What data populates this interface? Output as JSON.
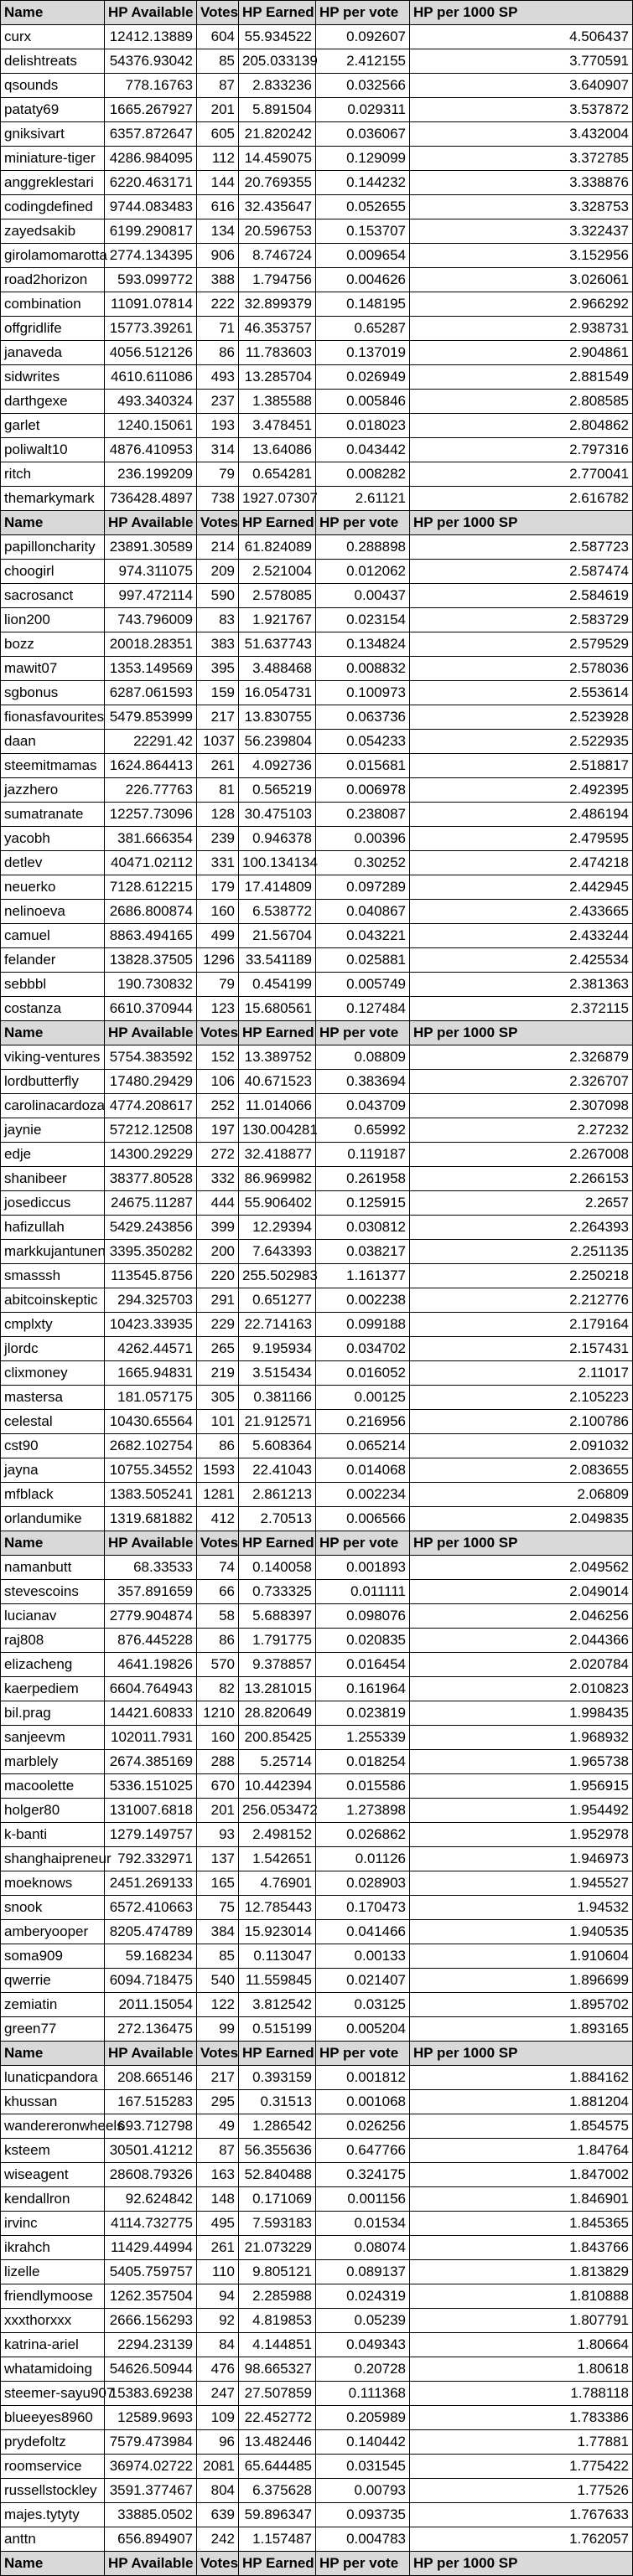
{
  "headers": [
    "Name",
    "HP Available",
    "Votes",
    "HP Earned",
    "HP per vote",
    "HP per 1000 SP"
  ],
  "sections": [
    {
      "rows": [
        [
          "curx",
          "12412.13889",
          "604",
          "55.934522",
          "0.092607",
          "4.506437"
        ],
        [
          "delishtreats",
          "54376.93042",
          "85",
          "205.033139",
          "2.412155",
          "3.770591"
        ],
        [
          "qsounds",
          "778.16763",
          "87",
          "2.833236",
          "0.032566",
          "3.640907"
        ],
        [
          "pataty69",
          "1665.267927",
          "201",
          "5.891504",
          "0.029311",
          "3.537872"
        ],
        [
          "gniksivart",
          "6357.872647",
          "605",
          "21.820242",
          "0.036067",
          "3.432004"
        ],
        [
          "miniature-tiger",
          "4286.984095",
          "112",
          "14.459075",
          "0.129099",
          "3.372785"
        ],
        [
          "anggreklestari",
          "6220.463171",
          "144",
          "20.769355",
          "0.144232",
          "3.338876"
        ],
        [
          "codingdefined",
          "9744.083483",
          "616",
          "32.435647",
          "0.052655",
          "3.328753"
        ],
        [
          "zayedsakib",
          "6199.290817",
          "134",
          "20.596753",
          "0.153707",
          "3.322437"
        ],
        [
          "girolamomarotta",
          "2774.134395",
          "906",
          "8.746724",
          "0.009654",
          "3.152956"
        ],
        [
          "road2horizon",
          "593.099772",
          "388",
          "1.794756",
          "0.004626",
          "3.026061"
        ],
        [
          "combination",
          "11091.07814",
          "222",
          "32.899379",
          "0.148195",
          "2.966292"
        ],
        [
          "offgridlife",
          "15773.39261",
          "71",
          "46.353757",
          "0.65287",
          "2.938731"
        ],
        [
          "janaveda",
          "4056.512126",
          "86",
          "11.783603",
          "0.137019",
          "2.904861"
        ],
        [
          "sidwrites",
          "4610.611086",
          "493",
          "13.285704",
          "0.026949",
          "2.881549"
        ],
        [
          "darthgexe",
          "493.340324",
          "237",
          "1.385588",
          "0.005846",
          "2.808585"
        ],
        [
          "garlet",
          "1240.15061",
          "193",
          "3.478451",
          "0.018023",
          "2.804862"
        ],
        [
          "poliwalt10",
          "4876.410953",
          "314",
          "13.64086",
          "0.043442",
          "2.797316"
        ],
        [
          "ritch",
          "236.199209",
          "79",
          "0.654281",
          "0.008282",
          "2.770041"
        ],
        [
          "themarkymark",
          "736428.4897",
          "738",
          "1927.07307",
          "2.61121",
          "2.616782"
        ]
      ]
    },
    {
      "rows": [
        [
          "papilloncharity",
          "23891.30589",
          "214",
          "61.824089",
          "0.288898",
          "2.587723"
        ],
        [
          "choogirl",
          "974.311075",
          "209",
          "2.521004",
          "0.012062",
          "2.587474"
        ],
        [
          "sacrosanct",
          "997.472114",
          "590",
          "2.578085",
          "0.00437",
          "2.584619"
        ],
        [
          "lion200",
          "743.796009",
          "83",
          "1.921767",
          "0.023154",
          "2.583729"
        ],
        [
          "bozz",
          "20018.28351",
          "383",
          "51.637743",
          "0.134824",
          "2.579529"
        ],
        [
          "mawit07",
          "1353.149569",
          "395",
          "3.488468",
          "0.008832",
          "2.578036"
        ],
        [
          "sgbonus",
          "6287.061593",
          "159",
          "16.054731",
          "0.100973",
          "2.553614"
        ],
        [
          "fionasfavourites",
          "5479.853999",
          "217",
          "13.830755",
          "0.063736",
          "2.523928"
        ],
        [
          "daan",
          "22291.42",
          "1037",
          "56.239804",
          "0.054233",
          "2.522935"
        ],
        [
          "steemitmamas",
          "1624.864413",
          "261",
          "4.092736",
          "0.015681",
          "2.518817"
        ],
        [
          "jazzhero",
          "226.77763",
          "81",
          "0.565219",
          "0.006978",
          "2.492395"
        ],
        [
          "sumatranate",
          "12257.73096",
          "128",
          "30.475103",
          "0.238087",
          "2.486194"
        ],
        [
          "yacobh",
          "381.666354",
          "239",
          "0.946378",
          "0.00396",
          "2.479595"
        ],
        [
          "detlev",
          "40471.02112",
          "331",
          "100.134134",
          "0.30252",
          "2.474218"
        ],
        [
          "neuerko",
          "7128.612215",
          "179",
          "17.414809",
          "0.097289",
          "2.442945"
        ],
        [
          "nelinoeva",
          "2686.800874",
          "160",
          "6.538772",
          "0.040867",
          "2.433665"
        ],
        [
          "camuel",
          "8863.494165",
          "499",
          "21.56704",
          "0.043221",
          "2.433244"
        ],
        [
          "felander",
          "13828.37505",
          "1296",
          "33.541189",
          "0.025881",
          "2.425534"
        ],
        [
          "sebbbl",
          "190.730832",
          "79",
          "0.454199",
          "0.005749",
          "2.381363"
        ],
        [
          "costanza",
          "6610.370944",
          "123",
          "15.680561",
          "0.127484",
          "2.372115"
        ]
      ]
    },
    {
      "rows": [
        [
          "viking-ventures",
          "5754.383592",
          "152",
          "13.389752",
          "0.08809",
          "2.326879"
        ],
        [
          "lordbutterfly",
          "17480.29429",
          "106",
          "40.671523",
          "0.383694",
          "2.326707"
        ],
        [
          "carolinacardoza",
          "4774.208617",
          "252",
          "11.014066",
          "0.043709",
          "2.307098"
        ],
        [
          "jaynie",
          "57212.12508",
          "197",
          "130.004281",
          "0.65992",
          "2.27232"
        ],
        [
          "edje",
          "14300.29229",
          "272",
          "32.418877",
          "0.119187",
          "2.267008"
        ],
        [
          "shanibeer",
          "38377.80528",
          "332",
          "86.969982",
          "0.261958",
          "2.266153"
        ],
        [
          "josediccus",
          "24675.11287",
          "444",
          "55.906402",
          "0.125915",
          "2.2657"
        ],
        [
          "hafizullah",
          "5429.243856",
          "399",
          "12.29394",
          "0.030812",
          "2.264393"
        ],
        [
          "markkujantunen",
          "3395.350282",
          "200",
          "7.643393",
          "0.038217",
          "2.251135"
        ],
        [
          "smasssh",
          "113545.8756",
          "220",
          "255.502983",
          "1.161377",
          "2.250218"
        ],
        [
          "abitcoinskeptic",
          "294.325703",
          "291",
          "0.651277",
          "0.002238",
          "2.212776"
        ],
        [
          "cmplxty",
          "10423.33935",
          "229",
          "22.714163",
          "0.099188",
          "2.179164"
        ],
        [
          "jlordc",
          "4262.44571",
          "265",
          "9.195934",
          "0.034702",
          "2.157431"
        ],
        [
          "clixmoney",
          "1665.94831",
          "219",
          "3.515434",
          "0.016052",
          "2.11017"
        ],
        [
          "mastersa",
          "181.057175",
          "305",
          "0.381166",
          "0.00125",
          "2.105223"
        ],
        [
          "celestal",
          "10430.65564",
          "101",
          "21.912571",
          "0.216956",
          "2.100786"
        ],
        [
          "cst90",
          "2682.102754",
          "86",
          "5.608364",
          "0.065214",
          "2.091032"
        ],
        [
          "jayna",
          "10755.34552",
          "1593",
          "22.41043",
          "0.014068",
          "2.083655"
        ],
        [
          "mfblack",
          "1383.505241",
          "1281",
          "2.861213",
          "0.002234",
          "2.06809"
        ],
        [
          "orlandumike",
          "1319.681882",
          "412",
          "2.70513",
          "0.006566",
          "2.049835"
        ]
      ]
    },
    {
      "rows": [
        [
          "namanbutt",
          "68.33533",
          "74",
          "0.140058",
          "0.001893",
          "2.049562"
        ],
        [
          "stevescoins",
          "357.891659",
          "66",
          "0.733325",
          "0.011111",
          "2.049014"
        ],
        [
          "lucianav",
          "2779.904874",
          "58",
          "5.688397",
          "0.098076",
          "2.046256"
        ],
        [
          "raj808",
          "876.445228",
          "86",
          "1.791775",
          "0.020835",
          "2.044366"
        ],
        [
          "elizacheng",
          "4641.19826",
          "570",
          "9.378857",
          "0.016454",
          "2.020784"
        ],
        [
          "kaerpediem",
          "6604.764943",
          "82",
          "13.281015",
          "0.161964",
          "2.010823"
        ],
        [
          "bil.prag",
          "14421.60833",
          "1210",
          "28.820649",
          "0.023819",
          "1.998435"
        ],
        [
          "sanjeevm",
          "102011.7931",
          "160",
          "200.85425",
          "1.255339",
          "1.968932"
        ],
        [
          "marblely",
          "2674.385169",
          "288",
          "5.25714",
          "0.018254",
          "1.965738"
        ],
        [
          "macoolette",
          "5336.151025",
          "670",
          "10.442394",
          "0.015586",
          "1.956915"
        ],
        [
          "holger80",
          "131007.6818",
          "201",
          "256.053472",
          "1.273898",
          "1.954492"
        ],
        [
          "k-banti",
          "1279.149757",
          "93",
          "2.498152",
          "0.026862",
          "1.952978"
        ],
        [
          "shanghaipreneur",
          "792.332971",
          "137",
          "1.542651",
          "0.01126",
          "1.946973"
        ],
        [
          "moeknows",
          "2451.269133",
          "165",
          "4.76901",
          "0.028903",
          "1.945527"
        ],
        [
          "snook",
          "6572.410663",
          "75",
          "12.785443",
          "0.170473",
          "1.94532"
        ],
        [
          "amberyooper",
          "8205.474789",
          "384",
          "15.923014",
          "0.041466",
          "1.940535"
        ],
        [
          "soma909",
          "59.168234",
          "85",
          "0.113047",
          "0.00133",
          "1.910604"
        ],
        [
          "qwerrie",
          "6094.718475",
          "540",
          "11.559845",
          "0.021407",
          "1.896699"
        ],
        [
          "zemiatin",
          "2011.15054",
          "122",
          "3.812542",
          "0.03125",
          "1.895702"
        ],
        [
          "green77",
          "272.136475",
          "99",
          "0.515199",
          "0.005204",
          "1.893165"
        ]
      ]
    },
    {
      "rows": [
        [
          "lunaticpandora",
          "208.665146",
          "217",
          "0.393159",
          "0.001812",
          "1.884162"
        ],
        [
          "khussan",
          "167.515283",
          "295",
          "0.31513",
          "0.001068",
          "1.881204"
        ],
        [
          "wandereronwheels",
          "693.712798",
          "49",
          "1.286542",
          "0.026256",
          "1.854575"
        ],
        [
          "ksteem",
          "30501.41212",
          "87",
          "56.355636",
          "0.647766",
          "1.84764"
        ],
        [
          "wiseagent",
          "28608.79326",
          "163",
          "52.840488",
          "0.324175",
          "1.847002"
        ],
        [
          "kendallron",
          "92.624842",
          "148",
          "0.171069",
          "0.001156",
          "1.846901"
        ],
        [
          "irvinc",
          "4114.732775",
          "495",
          "7.593183",
          "0.01534",
          "1.845365"
        ],
        [
          "ikrahch",
          "11429.44994",
          "261",
          "21.073229",
          "0.08074",
          "1.843766"
        ],
        [
          "lizelle",
          "5405.759757",
          "110",
          "9.805121",
          "0.089137",
          "1.813829"
        ],
        [
          "friendlymoose",
          "1262.357504",
          "94",
          "2.285988",
          "0.024319",
          "1.810888"
        ],
        [
          "xxxthorxxx",
          "2666.156293",
          "92",
          "4.819853",
          "0.05239",
          "1.807791"
        ],
        [
          "katrina-ariel",
          "2294.23139",
          "84",
          "4.144851",
          "0.049343",
          "1.80664"
        ],
        [
          "whatamidoing",
          "54626.50944",
          "476",
          "98.665327",
          "0.20728",
          "1.80618"
        ],
        [
          "steemer-sayu907",
          "15383.69238",
          "247",
          "27.507859",
          "0.111368",
          "1.788118"
        ],
        [
          "blueeyes8960",
          "12589.9693",
          "109",
          "22.452772",
          "0.205989",
          "1.783386"
        ],
        [
          "prydefoltz",
          "7579.473984",
          "96",
          "13.482446",
          "0.140442",
          "1.77881"
        ],
        [
          "roomservice",
          "36974.02722",
          "2081",
          "65.644485",
          "0.031545",
          "1.775422"
        ],
        [
          "russellstockley",
          "3591.377467",
          "804",
          "6.375628",
          "0.00793",
          "1.77526"
        ],
        [
          "majes.tytyty",
          "33885.0502",
          "639",
          "59.896347",
          "0.093735",
          "1.767633"
        ],
        [
          "anttn",
          "656.894907",
          "242",
          "1.157487",
          "0.004783",
          "1.762057"
        ]
      ]
    },
    {
      "rows": []
    }
  ]
}
